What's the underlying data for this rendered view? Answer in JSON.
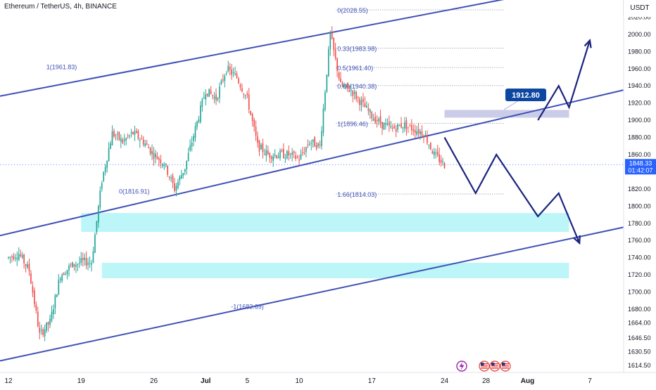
{
  "header": {
    "title": "Ethereum / TetherUS, 4h, BINANCE",
    "currency": "USDT"
  },
  "price_tag": {
    "price": "1848.33",
    "countdown": "01:42:07",
    "color": "#2962ff"
  },
  "target_label": {
    "text": "1912.80",
    "color": "#0d47a1"
  },
  "colors": {
    "up": "#26a69a",
    "down": "#ef5350",
    "channel": "#3f51b5",
    "zone": "#b2f5f7",
    "resistance_zone": "#c5c8e6",
    "projection": "#1a237e",
    "fib_text": "#3f51b5"
  },
  "chart_data": {
    "type": "candlestick",
    "symbol": "Ethereum / TetherUS",
    "timeframe": "4h",
    "exchange": "BINANCE",
    "y_axis": {
      "range": [
        1608,
        2040
      ],
      "ticks": [
        2020,
        2000,
        1980,
        1960,
        1940,
        1920,
        1900,
        1880,
        1860,
        1840,
        1820,
        1800,
        1780,
        1760,
        1740,
        1720,
        1700,
        1680,
        1664,
        1646.5,
        1630.5,
        1614.5
      ],
      "tick_labels": [
        "2020.00",
        "2000.00",
        "1980.00",
        "1960.00",
        "1940.00",
        "1920.00",
        "1900.00",
        "1880.00",
        "1860.00",
        "1840.00",
        "1820.00",
        "1800.00",
        "1780.00",
        "1760.00",
        "1740.00",
        "1720.00",
        "1700.00",
        "1680.00",
        "1664.00",
        "1646.50",
        "1630.50",
        "1614.50"
      ]
    },
    "x_axis": {
      "range_days": [
        "2023-06-12",
        "2023-08-07"
      ],
      "tick_labels": [
        "12",
        "19",
        "26",
        "Jul",
        "5",
        "10",
        "17",
        "24",
        "28",
        "Aug",
        "7"
      ],
      "tick_dates": [
        "2023-06-12",
        "2023-06-19",
        "2023-06-26",
        "2023-07-01",
        "2023-07-05",
        "2023-07-10",
        "2023-07-17",
        "2023-07-24",
        "2023-07-28",
        "2023-08-01",
        "2023-08-07"
      ]
    },
    "price_path": [
      [
        "2023-06-12",
        1740
      ],
      [
        "2023-06-13",
        1745
      ],
      [
        "2023-06-14",
        1725
      ],
      [
        "2023-06-15",
        1650
      ],
      [
        "2023-06-16",
        1665
      ],
      [
        "2023-06-17",
        1720
      ],
      [
        "2023-06-18",
        1730
      ],
      [
        "2023-06-19",
        1735
      ],
      [
        "2023-06-20",
        1735
      ],
      [
        "2023-06-21",
        1830
      ],
      [
        "2023-06-22",
        1885
      ],
      [
        "2023-06-23",
        1875
      ],
      [
        "2023-06-24",
        1885
      ],
      [
        "2023-06-25",
        1875
      ],
      [
        "2023-06-26",
        1860
      ],
      [
        "2023-06-27",
        1850
      ],
      [
        "2023-06-28",
        1820
      ],
      [
        "2023-06-29",
        1845
      ],
      [
        "2023-06-30",
        1890
      ],
      [
        "2023-07-01",
        1935
      ],
      [
        "2023-07-02",
        1925
      ],
      [
        "2023-07-03",
        1960
      ],
      [
        "2023-07-04",
        1950
      ],
      [
        "2023-07-05",
        1925
      ],
      [
        "2023-07-06",
        1870
      ],
      [
        "2023-07-07",
        1860
      ],
      [
        "2023-07-08",
        1860
      ],
      [
        "2023-07-09",
        1860
      ],
      [
        "2023-07-10",
        1855
      ],
      [
        "2023-07-11",
        1875
      ],
      [
        "2023-07-12",
        1870
      ],
      [
        "2023-07-13",
        2000
      ],
      [
        "2023-07-14",
        1940
      ],
      [
        "2023-07-15",
        1935
      ],
      [
        "2023-07-16",
        1920
      ],
      [
        "2023-07-17",
        1905
      ],
      [
        "2023-07-18",
        1895
      ],
      [
        "2023-07-19",
        1890
      ],
      [
        "2023-07-20",
        1895
      ],
      [
        "2023-07-21",
        1890
      ],
      [
        "2023-07-22",
        1885
      ],
      [
        "2023-07-23",
        1860
      ],
      [
        "2023-07-24",
        1848
      ]
    ],
    "channel_lines": [
      {
        "name": "upper",
        "points": [
          [
            "2023-06-12",
            1930
          ],
          [
            "2023-08-07",
            2060
          ]
        ]
      },
      {
        "name": "middle",
        "points": [
          [
            "2023-06-12",
            1768
          ],
          [
            "2023-08-07",
            1926
          ]
        ]
      },
      {
        "name": "lower",
        "points": [
          [
            "2023-06-12",
            1622
          ],
          [
            "2023-08-07",
            1767
          ]
        ]
      }
    ],
    "fib_levels": [
      {
        "label": "0(2028.55)",
        "value": 2028.55
      },
      {
        "label": "0.33(1983.98)",
        "value": 1983.98
      },
      {
        "label": "0.5(1961.40)",
        "value": 1961.4
      },
      {
        "label": "0.66(1940.38)",
        "value": 1940.38
      },
      {
        "label": "1(1896.46)",
        "value": 1896.46
      },
      {
        "label": "1.66(1814.03)",
        "value": 1814.03
      }
    ],
    "channel_fib_labels": [
      {
        "label": "1(1961.83)",
        "value": 1961.83,
        "date": "2023-06-19"
      },
      {
        "label": "0(1816.91)",
        "value": 1816.91,
        "date": "2023-06-26"
      },
      {
        "label": "-1(1682.69)",
        "value": 1682.69,
        "date": "2023-07-07"
      }
    ],
    "zones": [
      {
        "name": "demand-zone-upper",
        "from": 1770,
        "to": 1792,
        "start": "2023-06-19",
        "end": "2023-08-05"
      },
      {
        "name": "demand-zone-lower",
        "from": 1716,
        "to": 1734,
        "start": "2023-06-21",
        "end": "2023-08-05"
      },
      {
        "name": "resistance-zone",
        "from": 1903,
        "to": 1912,
        "start": "2023-07-24",
        "end": "2023-08-05"
      }
    ],
    "projection_down": [
      [
        "2023-07-24",
        1880
      ],
      [
        "2023-07-27",
        1815
      ],
      [
        "2023-07-29",
        1860
      ],
      [
        "2023-08-02",
        1788
      ],
      [
        "2023-08-04",
        1815
      ],
      [
        "2023-08-06",
        1757
      ]
    ],
    "projection_up": [
      [
        "2023-08-02",
        1900
      ],
      [
        "2023-08-04",
        1940
      ],
      [
        "2023-08-05",
        1915
      ],
      [
        "2023-08-07",
        1993
      ]
    ],
    "last_price": 1848.33,
    "grid": false
  },
  "bottom_icons": [
    "lightning-icon",
    "us-flag-icon",
    "us-flag-icon",
    "us-flag-icon"
  ]
}
